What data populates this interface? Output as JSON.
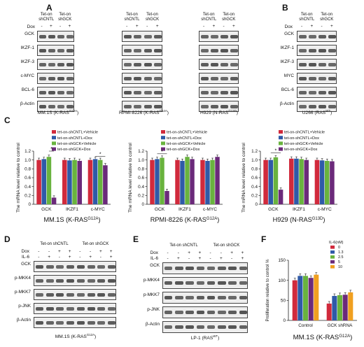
{
  "panels": {
    "A": "A",
    "B": "B",
    "C": "C",
    "D": "D",
    "E": "E",
    "F": "F"
  },
  "blots": {
    "tet_on_shcntl": "Tet-on shCNTL",
    "tet_on_shgck": "Tet-on shGCK",
    "dox": "Dox",
    "il6": "IL-6",
    "minus": "-",
    "plus": "+",
    "rows_A": [
      "GCK",
      "IKZF-1",
      "IKZF-3",
      "c-MYC",
      "BCL-6",
      "β-Actin"
    ],
    "rows_B": [
      "GCK",
      "IKZF-1",
      "IKZF-3",
      "MYC",
      "BCL-6",
      "β-Actin"
    ],
    "rows_DE": [
      "GCK",
      "p-MKK4",
      "p-MKK7",
      "p-JNK",
      "β-Actin"
    ],
    "cell_A1": "MM.1S (K-RAS",
    "cell_A1_sup": "G12A",
    "cell_A2": "RPMI-8226 (K-RAS",
    "cell_A2_sup": "G12A",
    "cell_A3": "H929 (N-RAS",
    "cell_A3_sup": "G13D",
    "cell_B": "U266 (RAS",
    "cell_B_sup": "WT",
    "cell_D": "MM.1S (K-RAS",
    "cell_D_sup": "G12A",
    "cell_E": "LP-1 (RAS",
    "cell_E_sup": "WT",
    "close_paren": ")"
  },
  "legend_C": [
    "tet-on-shCNTL+Vehicle",
    "tet-on-shCNTL+Dox",
    "tet-on-shGCK+Vehicle",
    "tet-on-shGCK+Dox"
  ],
  "colors": {
    "cntl_vehicle": "#d12a3c",
    "cntl_dox": "#2f5aa8",
    "gck_vehicle": "#69b33e",
    "gck_dox": "#6b2a7a",
    "f0": "#d12a3c",
    "f13": "#2f5aa8",
    "f25": "#69b33e",
    "f5": "#6b2a7a",
    "f10": "#f0a020"
  },
  "chart_data": [
    {
      "type": "bar",
      "ylabel": "The mRNA level relative to control",
      "caption": "MM.1S (K-RAS",
      "caption_sup": "G12A",
      "categories": [
        "GCK",
        "IKZF1",
        "c-MYC"
      ],
      "ylim": [
        0,
        1.2
      ],
      "yticks": [
        "0",
        "0.2",
        "0.4",
        "0.6",
        "0.8",
        "1.0",
        "1.2"
      ],
      "series": [
        {
          "name": "tet-on-shCNTL+Vehicle",
          "values": [
            1.0,
            1.0,
            1.0
          ]
        },
        {
          "name": "tet-on-shCNTL+Dox",
          "values": [
            1.02,
            0.99,
            1.02
          ]
        },
        {
          "name": "tet-on-shGCK+Vehicle",
          "values": [
            1.07,
            1.0,
            1.0
          ]
        },
        {
          "name": "tet-on-shGCK+Dox",
          "values": [
            0.15,
            0.98,
            0.88
          ]
        }
      ]
    },
    {
      "type": "bar",
      "ylabel": "The mRNA level relative to control",
      "caption": "RPMI-8226 (K-RAS",
      "caption_sup": "G12A",
      "categories": [
        "GCK",
        "IKZF1",
        "c-MYC"
      ],
      "ylim": [
        0,
        1.2
      ],
      "yticks": [
        "0",
        "0.2",
        "0.4",
        "0.6",
        "0.8",
        "1.0",
        "1.2"
      ],
      "series": [
        {
          "name": "tet-on-shCNTL+Vehicle",
          "values": [
            1.0,
            1.0,
            1.0
          ]
        },
        {
          "name": "tet-on-shCNTL+Dox",
          "values": [
            1.02,
            0.98,
            0.98
          ]
        },
        {
          "name": "tet-on-shGCK+Vehicle",
          "values": [
            1.05,
            1.07,
            1.0
          ]
        },
        {
          "name": "tet-on-shGCK+Dox",
          "values": [
            0.3,
            1.02,
            1.07
          ]
        }
      ]
    },
    {
      "type": "bar",
      "ylabel": "The mRNA level relative to control",
      "caption": "H929 (N-RAS",
      "caption_sup": "G13D",
      "categories": [
        "GCK",
        "IKZF1",
        "c-MYC"
      ],
      "ylim": [
        0,
        1.2
      ],
      "yticks": [
        "0",
        "0.2",
        "0.4",
        "0.6",
        "0.8",
        "1.0",
        "1.2"
      ],
      "series": [
        {
          "name": "tet-on-shCNTL+Vehicle",
          "values": [
            1.0,
            1.03,
            1.0
          ]
        },
        {
          "name": "tet-on-shCNTL+Dox",
          "values": [
            1.0,
            1.03,
            0.99
          ]
        },
        {
          "name": "tet-on-shGCK+Vehicle",
          "values": [
            1.06,
            1.02,
            0.98
          ]
        },
        {
          "name": "tet-on-shGCK+Dox",
          "values": [
            0.33,
            1.0,
            0.97
          ]
        }
      ]
    },
    {
      "type": "bar",
      "ylabel": "Proliferation relative to control %",
      "caption": "MM.1S (K-RAS",
      "caption_sup": "G12A",
      "legend_title": "IL-6(nM)",
      "categories": [
        "Control",
        "GCK shRNA"
      ],
      "ylim": [
        0,
        150
      ],
      "yticks": [
        "0",
        "50",
        "100",
        "150"
      ],
      "series": [
        {
          "name": "0",
          "values": [
            100,
            42
          ]
        },
        {
          "name": "1.3",
          "values": [
            111,
            61
          ]
        },
        {
          "name": "2.5",
          "values": [
            111,
            63
          ]
        },
        {
          "name": "5",
          "values": [
            106,
            64
          ]
        },
        {
          "name": "10",
          "values": [
            114,
            70
          ]
        }
      ]
    }
  ]
}
